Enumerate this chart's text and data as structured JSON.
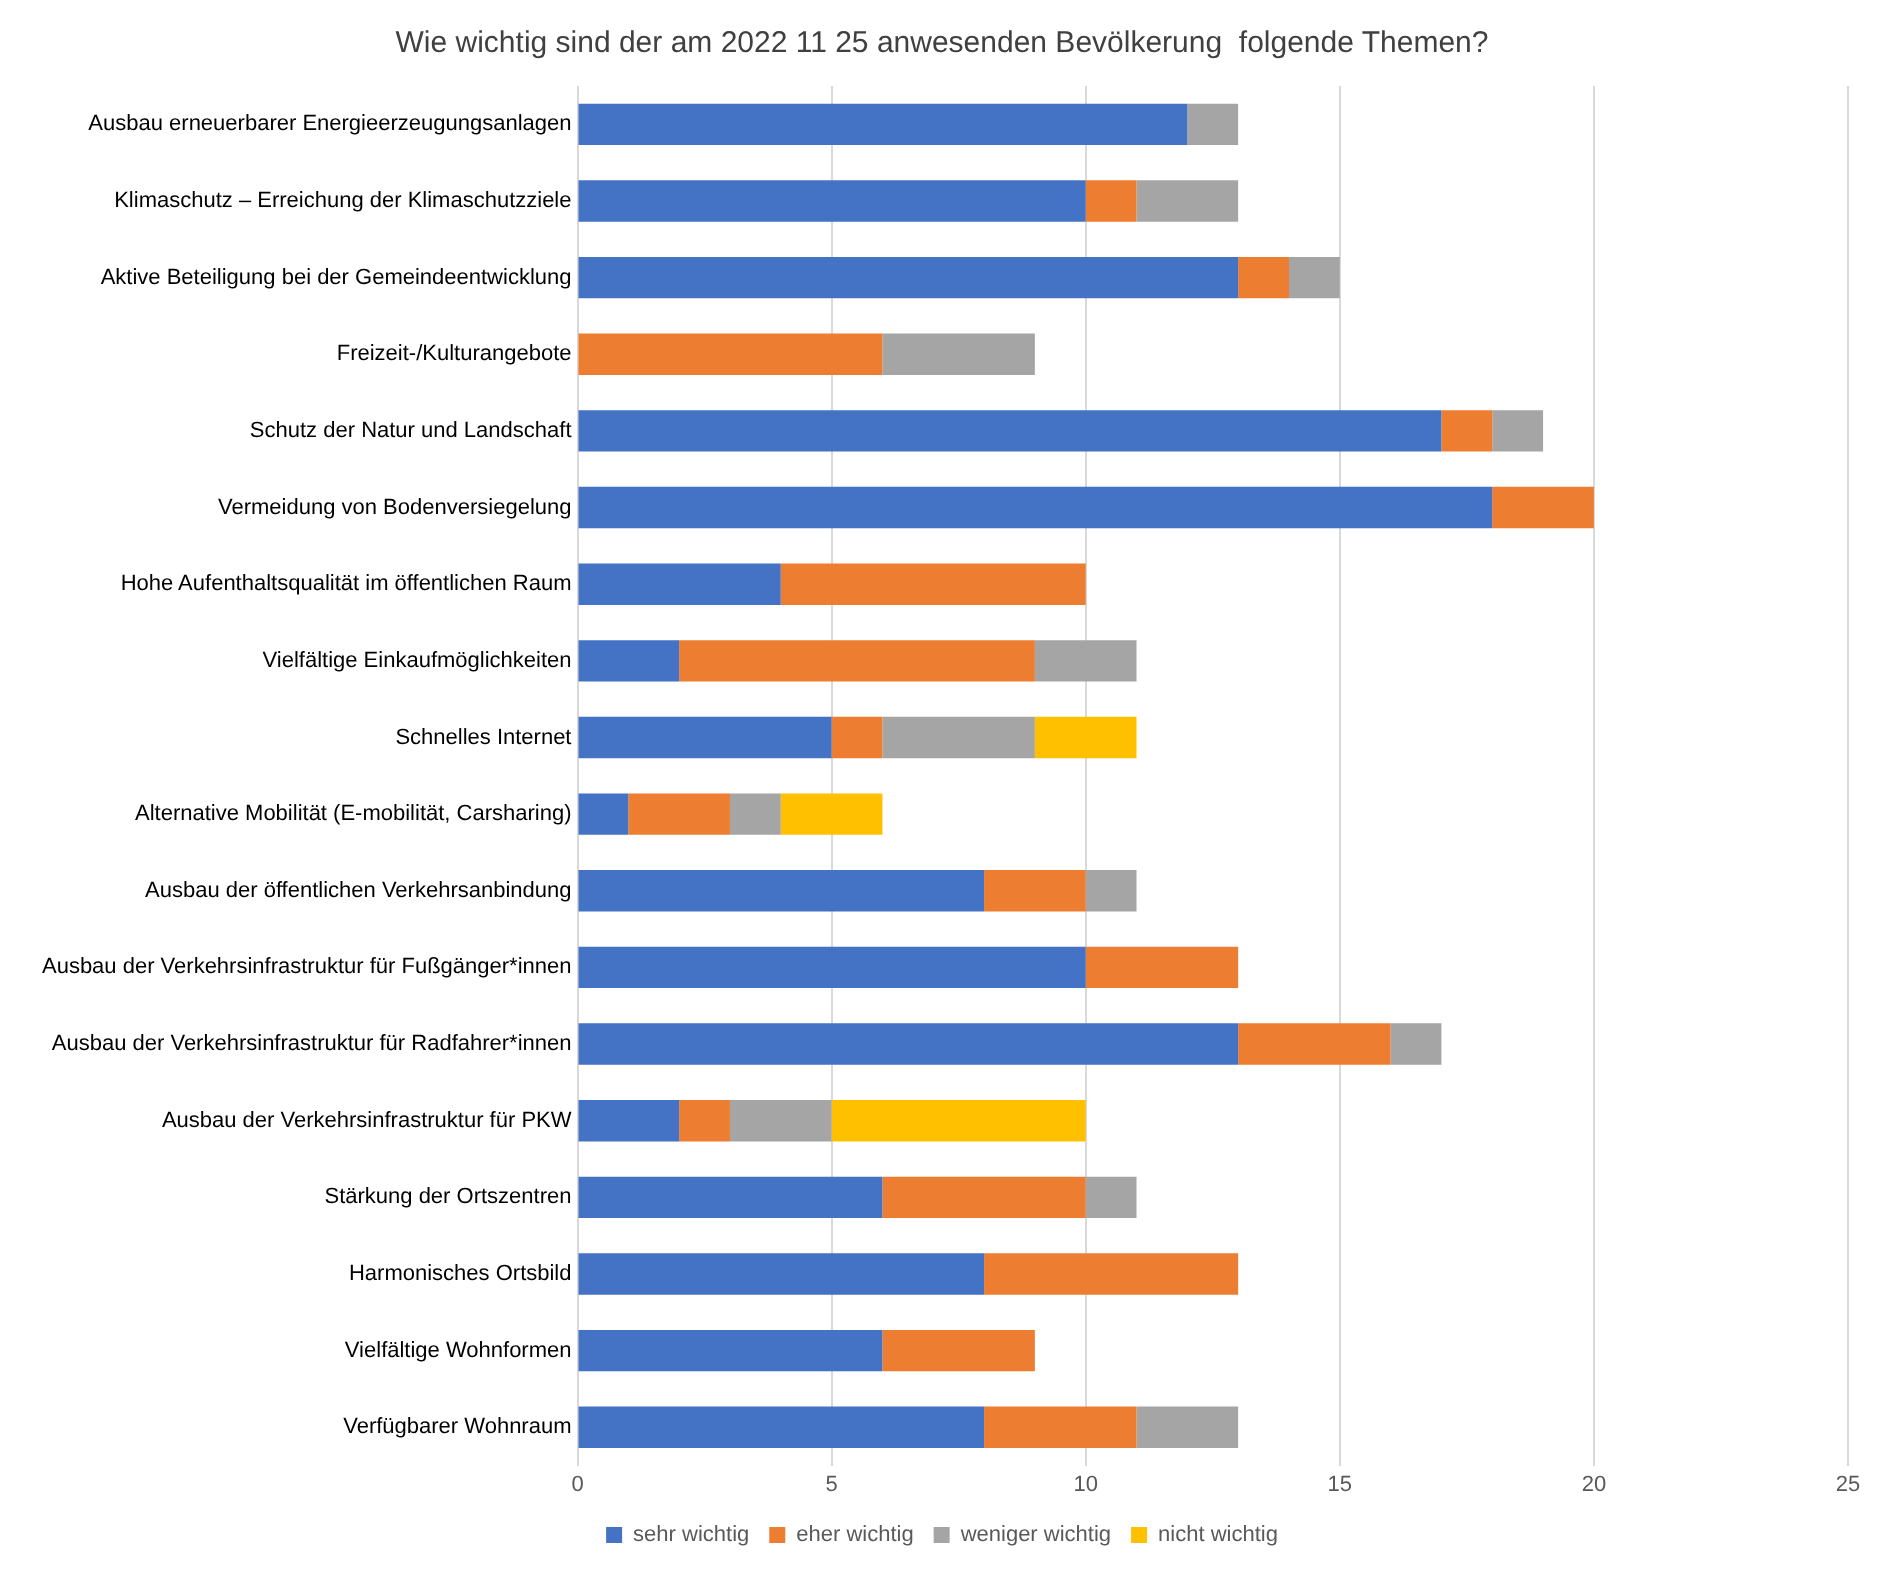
{
  "chart_data": {
    "type": "bar",
    "orientation": "horizontal",
    "stacked": true,
    "title": "Wie wichtig sind der am 2022 11 25 anwesenden Bevölkerung  folgende Themen?",
    "categories": [
      "Ausbau erneuerbarer Energieerzeugungsanlagen",
      "Klimaschutz – Erreichung der Klimaschutzziele",
      "Aktive Beteiligung bei der Gemeindeentwicklung",
      "Freizeit-/Kulturangebote",
      "Schutz der Natur und Landschaft",
      "Vermeidung von Bodenversiegelung",
      "Hohe Aufenthaltsqualität im öffentlichen Raum",
      "Vielfältige Einkaufmöglichkeiten",
      "Schnelles Internet",
      "Alternative Mobilität (E-mobilität, Carsharing)",
      "Ausbau der öffentlichen Verkehrsanbindung",
      "Ausbau der Verkehrsinfrastruktur für Fußgänger*innen",
      "Ausbau der Verkehrsinfrastruktur für Radfahrer*innen",
      "Ausbau der Verkehrsinfrastruktur für PKW",
      "Stärkung der Ortszentren",
      "Harmonisches Ortsbild",
      "Vielfältige Wohnformen",
      "Verfügbarer Wohnraum"
    ],
    "series": [
      {
        "name": "sehr wichtig",
        "color": "#4472c4",
        "values": [
          12,
          10,
          13,
          0,
          17,
          18,
          4,
          2,
          5,
          1,
          8,
          10,
          13,
          2,
          6,
          8,
          6,
          8
        ]
      },
      {
        "name": "eher wichtig",
        "color": "#ed7d31",
        "values": [
          0,
          1,
          1,
          6,
          1,
          2,
          6,
          7,
          1,
          2,
          2,
          3,
          3,
          1,
          4,
          5,
          3,
          3
        ]
      },
      {
        "name": "weniger wichtig",
        "color": "#a5a5a5",
        "values": [
          1,
          2,
          1,
          3,
          1,
          0,
          0,
          2,
          3,
          1,
          1,
          0,
          1,
          2,
          1,
          0,
          0,
          2
        ]
      },
      {
        "name": "nicht wichtig",
        "color": "#ffc000",
        "values": [
          0,
          0,
          0,
          0,
          0,
          0,
          0,
          0,
          2,
          2,
          0,
          0,
          0,
          5,
          0,
          0,
          0,
          0
        ]
      }
    ],
    "xlim": [
      0,
      25
    ],
    "xticks": [
      0,
      5,
      10,
      15,
      20,
      25
    ],
    "grid": "x",
    "legend": "bottom"
  }
}
